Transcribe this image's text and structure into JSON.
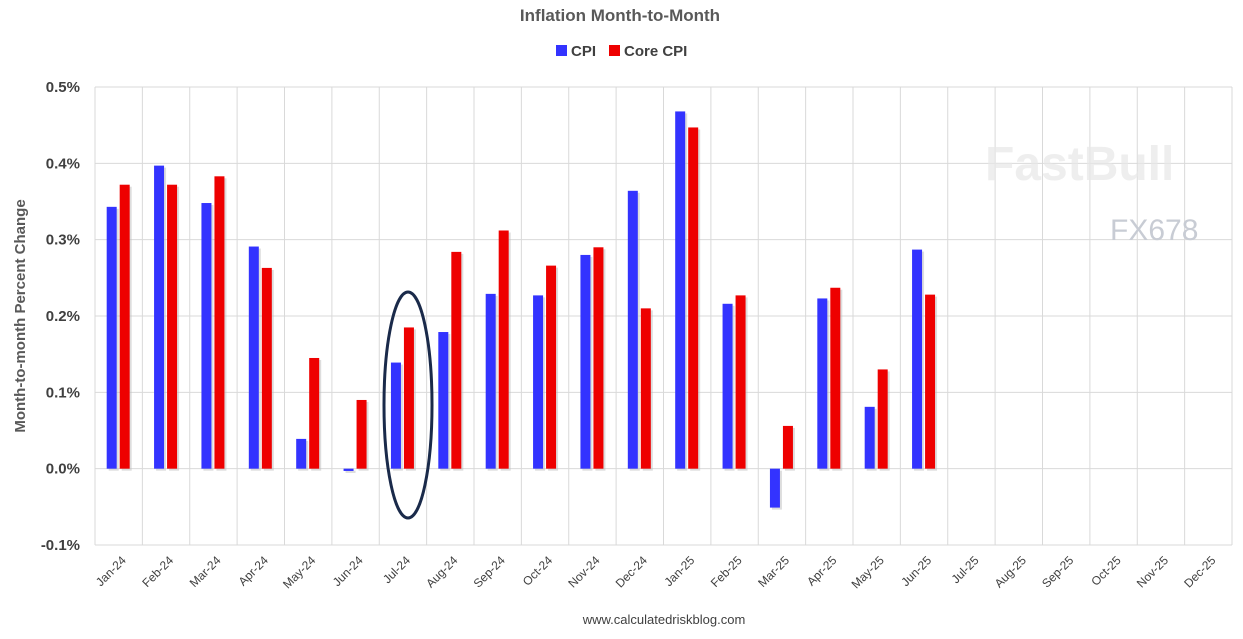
{
  "chart_data": {
    "type": "bar",
    "title": "Inflation Month-to-Month",
    "ylabel": "Month-to-month Percent Change",
    "xlabel": "",
    "ylim": [
      -0.1,
      0.5
    ],
    "yticks": [
      "-0.1%",
      "0.0%",
      "0.1%",
      "0.2%",
      "0.3%",
      "0.4%",
      "0.5%"
    ],
    "grid": true,
    "legend_position": "top",
    "categories": [
      "Jan-24",
      "Feb-24",
      "Mar-24",
      "Apr-24",
      "May-24",
      "Jun-24",
      "Jul-24",
      "Aug-24",
      "Sep-24",
      "Oct-24",
      "Nov-24",
      "Dec-24",
      "Jan-25",
      "Feb-25",
      "Mar-25",
      "Apr-25",
      "May-25",
      "Jun-25",
      "Jul-25",
      "Aug-25",
      "Sep-25",
      "Oct-25",
      "Nov-25",
      "Dec-25"
    ],
    "series": [
      {
        "name": "CPI",
        "color": "#3333ff",
        "values": [
          0.343,
          0.397,
          0.348,
          0.291,
          0.039,
          -0.003,
          0.139,
          0.179,
          0.229,
          0.227,
          0.28,
          0.364,
          0.468,
          0.216,
          -0.051,
          0.223,
          0.081,
          0.287,
          null,
          null,
          null,
          null,
          null,
          null
        ]
      },
      {
        "name": "Core CPI",
        "color": "#ee0000",
        "values": [
          0.372,
          0.372,
          0.383,
          0.263,
          0.145,
          0.09,
          0.185,
          0.284,
          0.312,
          0.266,
          0.29,
          0.21,
          0.447,
          0.227,
          0.056,
          0.237,
          0.13,
          0.228,
          null,
          null,
          null,
          null,
          null,
          null
        ]
      }
    ],
    "annotations": [
      {
        "type": "ellipse",
        "category": "Jul-24",
        "color": "#1a2a4a"
      }
    ],
    "source": "www.calculatedriskblog.com"
  },
  "watermark": {
    "text1": "FastBull",
    "text2": "FX678"
  }
}
